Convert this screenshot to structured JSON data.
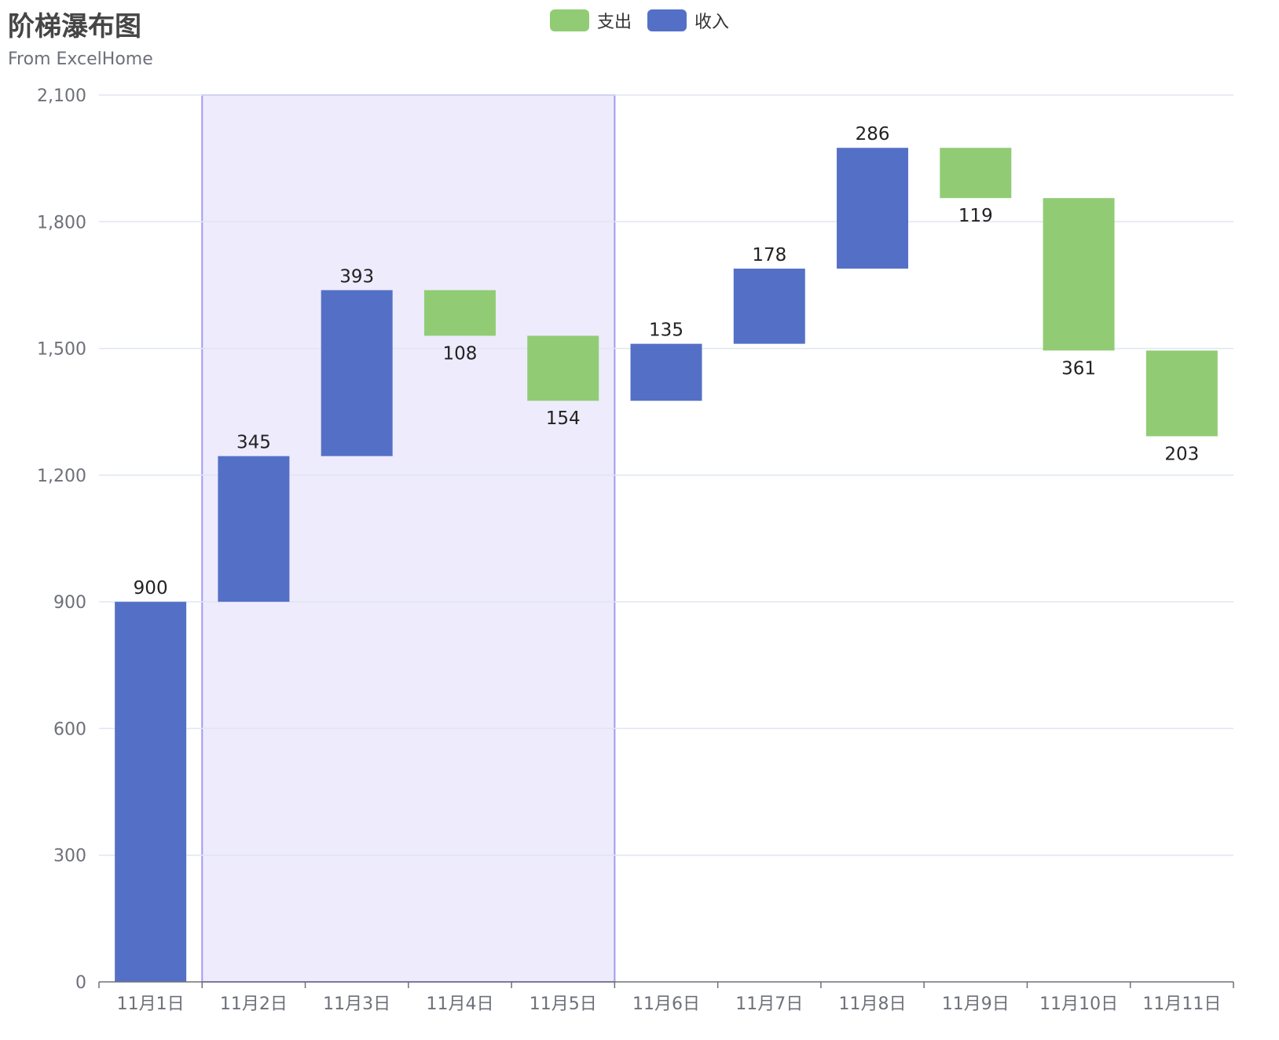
{
  "chart_data": {
    "type": "bar",
    "title": "阶梯瀑布图",
    "subtitle": "From ExcelHome",
    "categories": [
      "11月1日",
      "11月2日",
      "11月3日",
      "11月4日",
      "11月5日",
      "11月6日",
      "11月7日",
      "11月8日",
      "11月9日",
      "11月10日",
      "11月11日"
    ],
    "ylim": [
      0,
      2100
    ],
    "yticks": [
      "0",
      "300",
      "600",
      "900",
      "1,200",
      "1,500",
      "1,800",
      "2,100"
    ],
    "ytick_values": [
      0,
      300,
      600,
      900,
      1200,
      1500,
      1800,
      2100
    ],
    "grid": true,
    "legend_position": "top-center",
    "series": [
      {
        "name": "支出",
        "color": "#91cc75",
        "base": [
          null,
          null,
          null,
          1530,
          1376,
          null,
          null,
          null,
          1856,
          1495,
          1292
        ],
        "values": [
          null,
          null,
          null,
          108,
          154,
          null,
          null,
          null,
          119,
          361,
          203
        ],
        "labels": [
          "",
          "",
          "",
          "108",
          "154",
          "",
          "",
          "",
          "119",
          "361",
          "203"
        ]
      },
      {
        "name": "收入",
        "color": "#5470c6",
        "base": [
          0,
          900,
          1245,
          null,
          null,
          1376,
          1511,
          1689,
          null,
          null,
          null
        ],
        "values": [
          900,
          345,
          393,
          null,
          null,
          135,
          178,
          286,
          null,
          null,
          null
        ],
        "labels": [
          "900",
          "345",
          "393",
          "",
          "",
          "135",
          "178",
          "286",
          "",
          "",
          ""
        ]
      }
    ],
    "highlight_range": {
      "from": "11月2日",
      "to": "11月4日",
      "fill": "#eeebfd",
      "stroke": "#a29af2"
    }
  }
}
